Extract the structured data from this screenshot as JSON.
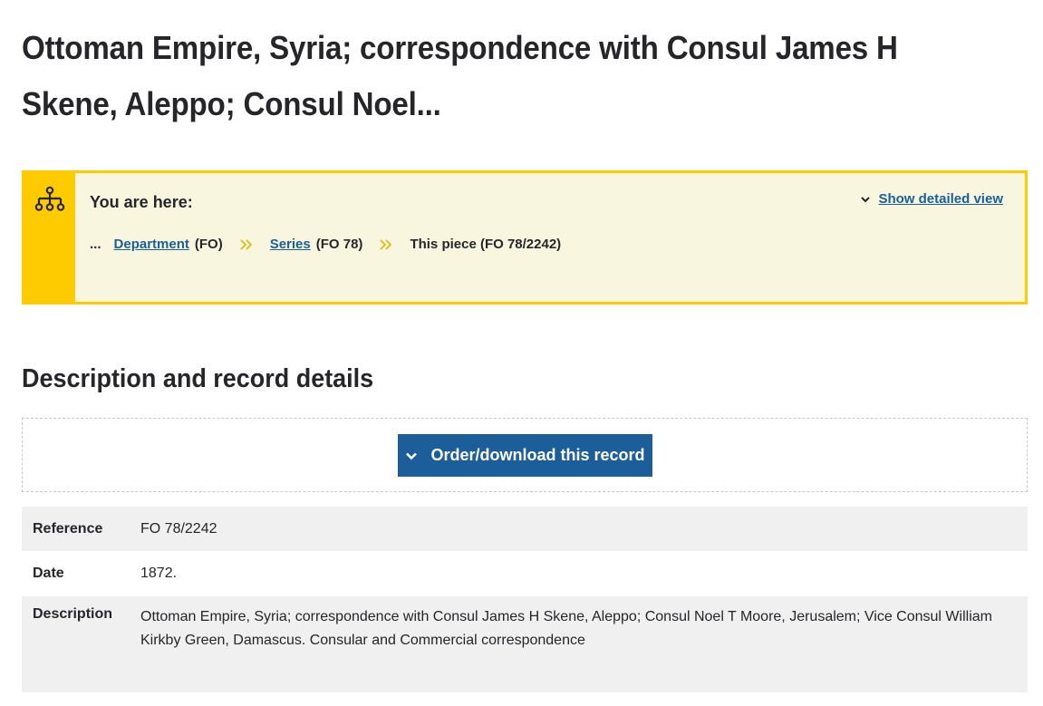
{
  "page": {
    "title": "Ottoman Empire, Syria; correspondence with Consul James H Skene, Aleppo; Consul Noel..."
  },
  "breadcrumb": {
    "label": "You are here:",
    "show_detail_label": "Show detailed view",
    "ellipsis": "...",
    "items": [
      {
        "link": "Department",
        "code": "(FO)"
      },
      {
        "link": "Series",
        "code": "(FO 78)"
      }
    ],
    "current": "This piece (FO 78/2242)",
    "icons": {
      "side": "hierarchy-icon",
      "toggle": "chevron-down-icon",
      "separator": "double-chevron-right-icon"
    },
    "colors": {
      "accent": "#fecb00",
      "background": "#f8f6df",
      "link": "#1a5f97"
    }
  },
  "section": {
    "title": "Description and record details"
  },
  "order": {
    "button_label": "Order/download this record",
    "color": "#1c5e99"
  },
  "details": {
    "rows": [
      {
        "key": "Reference",
        "value": "FO 78/2242"
      },
      {
        "key": "Date",
        "value": "1872."
      },
      {
        "key": "Description",
        "value": "Ottoman Empire, Syria; correspondence with Consul James H Skene, Aleppo; Consul Noel T Moore, Jerusalem; Vice Consul William Kirkby Green, Damascus. Consular and Commercial correspondence"
      }
    ]
  }
}
